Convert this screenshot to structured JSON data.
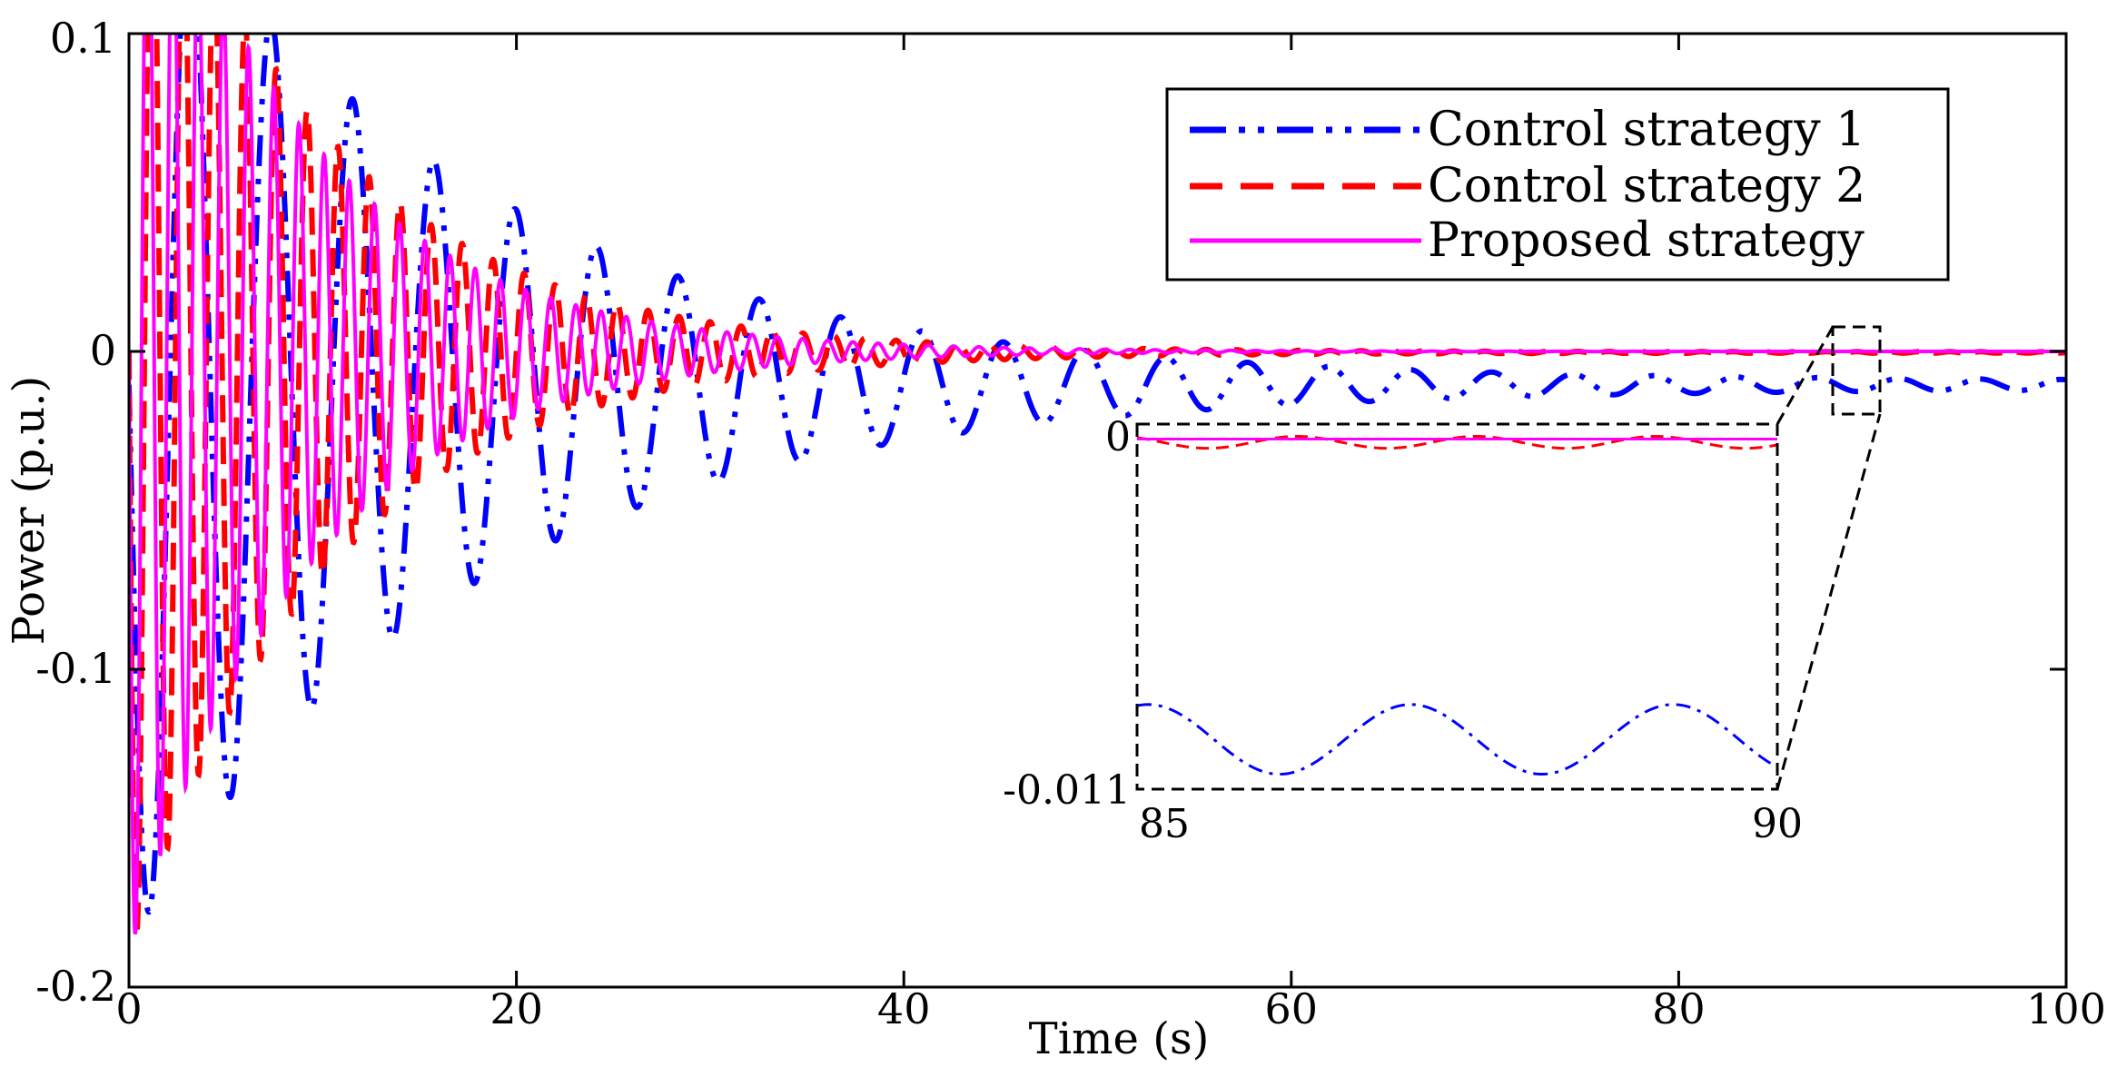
{
  "chart_data": {
    "type": "line",
    "title": "",
    "xlabel": "Time (s)",
    "ylabel": "Power (p.u.)",
    "xlim": [
      0,
      100
    ],
    "ylim": [
      -0.2,
      0.1
    ],
    "x_ticks": [
      0,
      20,
      40,
      60,
      80,
      100
    ],
    "x_tick_labels": [
      "0",
      "20",
      "40",
      "60",
      "80",
      "100"
    ],
    "y_ticks": [
      -0.2,
      -0.1,
      0,
      0.1
    ],
    "y_tick_labels": [
      "-0.2",
      "-0.1",
      "0",
      "0.1"
    ],
    "grid": false,
    "legend_position": "top-right",
    "series": [
      {
        "name": "Control strategy 1",
        "color": "#0000ff",
        "line_style": "dash-dot",
        "model": {
          "amplitude": 0.175,
          "decay_time_s": 17,
          "period_s": 4.2,
          "offset": -0.0105,
          "tail_amplitude": 0.0012
        }
      },
      {
        "name": "Control strategy 2",
        "color": "#ff0000",
        "line_style": "dashed",
        "model": {
          "amplitude": 0.19,
          "decay_time_s": 10,
          "period_s": 1.6,
          "offset": -0.0003,
          "tail_amplitude": 0.0002
        }
      },
      {
        "name": "Proposed strategy",
        "color": "#ff00ff",
        "line_style": "solid",
        "model": {
          "amplitude": 0.19,
          "decay_time_s": 9,
          "period_s": 1.3,
          "offset": 0,
          "tail_amplitude": 0
        }
      }
    ],
    "inset": {
      "x_range": [
        85,
        90
      ],
      "y_range": [
        -0.011,
        0
      ],
      "x_tick_labels": [
        "85",
        "90"
      ],
      "y_tick_labels": [
        "0",
        "-0.011"
      ],
      "source_region": {
        "x": [
          88,
          90.5
        ],
        "y": [
          -0.0195,
          0.0085
        ]
      }
    }
  }
}
